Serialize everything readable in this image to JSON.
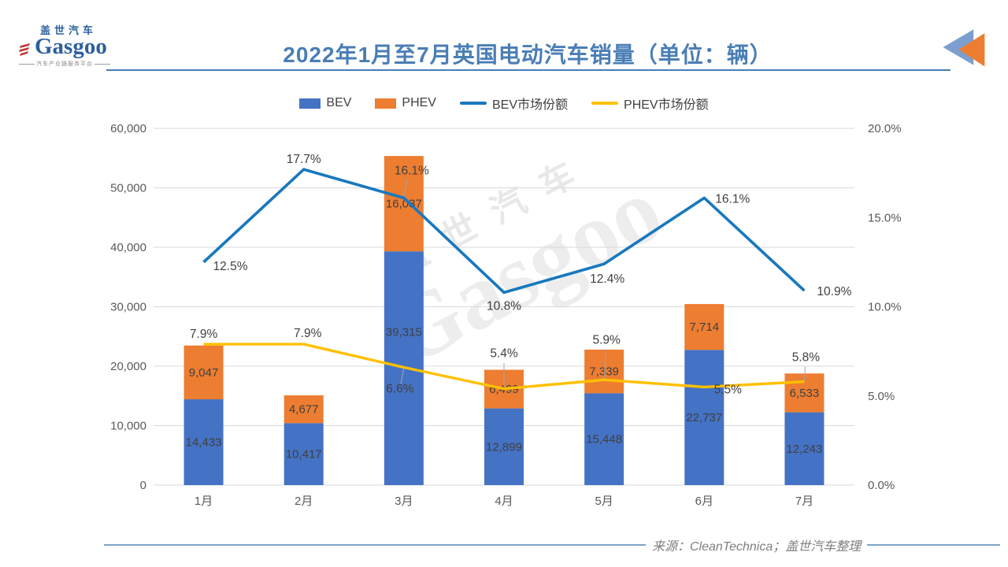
{
  "header": {
    "logo": {
      "brand_zh": "盖世汽车",
      "brand_en": "Gasgoo",
      "tagline": "汽车产业链服务平台"
    },
    "title": "2022年1月至7月英国电动汽车销量（单位：辆）"
  },
  "legend": [
    {
      "label": "BEV",
      "swatch": "box",
      "color": "#4472c4"
    },
    {
      "label": "PHEV",
      "swatch": "box",
      "color": "#ed7d31"
    },
    {
      "label": "BEV市场份额",
      "swatch": "line",
      "color": "#1878be"
    },
    {
      "label": "PHEV市场份额",
      "swatch": "line",
      "color": "#ffc000"
    }
  ],
  "watermark": {
    "zh": "盖世汽车",
    "en": "Gasgoo"
  },
  "footer": {
    "source": "来源：CleanTechnica；盖世汽车整理"
  },
  "colors": {
    "bar_bev": "#4472c4",
    "bar_phev": "#ed7d31",
    "line_bev": "#1878be",
    "line_phev": "#ffc000",
    "grid": "#d9d9d9",
    "axis_text": "#595959",
    "data_label": "#404040",
    "leader": "#a6a6a6"
  },
  "chart_data": {
    "type": "bar",
    "subtype": "stacked-bars-with-lines",
    "title": "2022年1月至7月英国电动汽车销量（单位：辆）",
    "categories": [
      "1月",
      "2月",
      "3月",
      "4月",
      "5月",
      "6月",
      "7月"
    ],
    "bar_series": [
      {
        "name": "BEV",
        "color": "#4472c4",
        "values": [
          14433,
          10417,
          39315,
          12899,
          15448,
          22737,
          12243
        ]
      },
      {
        "name": "PHEV",
        "color": "#ed7d31",
        "values": [
          9047,
          4677,
          16037,
          6499,
          7339,
          7714,
          6533
        ]
      }
    ],
    "line_series": [
      {
        "name": "BEV市场份额",
        "color": "#1878be",
        "values_pct": [
          12.5,
          17.7,
          16.1,
          10.8,
          12.4,
          16.1,
          10.9
        ]
      },
      {
        "name": "PHEV市场份额",
        "color": "#ffc000",
        "values_pct": [
          7.9,
          7.9,
          6.6,
          5.4,
          5.9,
          5.5,
          5.8
        ]
      }
    ],
    "left_axis": {
      "min": 0,
      "max": 60000,
      "step": 10000,
      "tick_labels": [
        "0",
        "10,000",
        "20,000",
        "30,000",
        "40,000",
        "50,000",
        "60,000"
      ]
    },
    "right_axis": {
      "min": 0,
      "max": 20,
      "step": 5,
      "tick_labels": [
        "0.0%",
        "5.0%",
        "10.0%",
        "15.0%",
        "20.0%"
      ]
    },
    "grid": true,
    "legend_position": "top"
  }
}
